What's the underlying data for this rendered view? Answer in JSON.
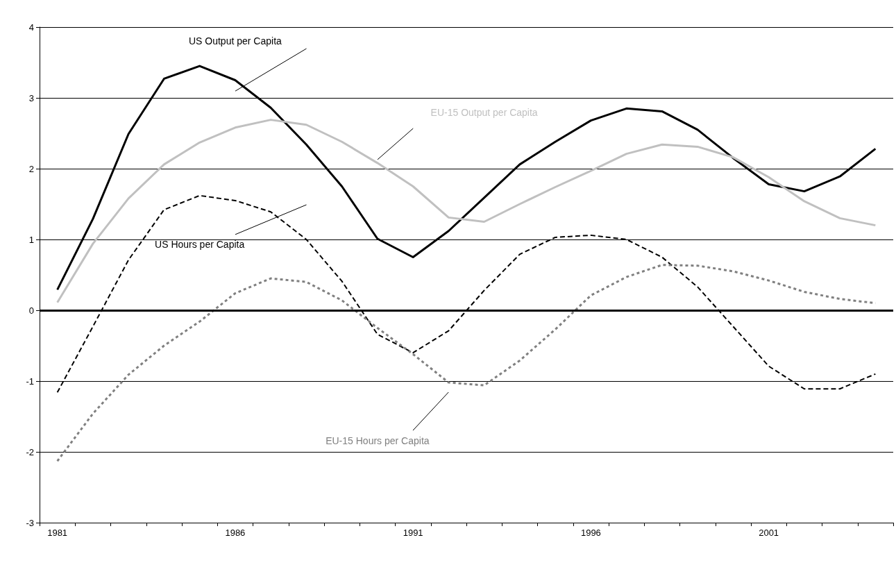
{
  "chart_data": {
    "type": "line",
    "categories": [
      "1981",
      null,
      null,
      null,
      null,
      "1986",
      null,
      null,
      null,
      null,
      "1991",
      null,
      null,
      null,
      null,
      "1996",
      null,
      null,
      null,
      null,
      "2001",
      null,
      null,
      null
    ],
    "series": [
      {
        "name": "US Output per Capita",
        "color": "#000000",
        "line_style": "solid",
        "values": [
          0.29,
          1.29,
          2.49,
          3.27,
          3.45,
          3.25,
          2.86,
          2.34,
          1.75,
          1.01,
          0.75,
          1.12,
          1.59,
          2.06,
          2.38,
          2.68,
          2.85,
          2.81,
          2.55,
          2.15,
          1.78,
          1.68,
          1.89,
          2.28
        ]
      },
      {
        "name": "EU-15 Output per Capita",
        "color": "#c0c0c0",
        "line_style": "solid",
        "values": [
          0.11,
          0.94,
          1.58,
          2.06,
          2.37,
          2.58,
          2.69,
          2.62,
          2.38,
          2.08,
          1.75,
          1.31,
          1.25,
          1.5,
          1.74,
          1.97,
          2.21,
          2.34,
          2.31,
          2.16,
          1.88,
          1.54,
          1.3,
          1.2
        ]
      },
      {
        "name": "US Hours per Capita",
        "color": "#000000",
        "line_style": "dashed",
        "values": [
          -1.16,
          -0.23,
          0.71,
          1.42,
          1.62,
          1.55,
          1.39,
          1.0,
          0.41,
          -0.34,
          -0.6,
          -0.29,
          0.28,
          0.79,
          1.03,
          1.06,
          1.0,
          0.75,
          0.33,
          -0.23,
          -0.79,
          -1.11,
          -1.11,
          -0.9
        ]
      },
      {
        "name": "EU-15 Hours per Capita",
        "color": "#808080",
        "line_style": "dotted",
        "values": [
          -2.13,
          -1.46,
          -0.91,
          -0.5,
          -0.16,
          0.24,
          0.45,
          0.4,
          0.14,
          -0.25,
          -0.62,
          -1.02,
          -1.06,
          -0.71,
          -0.27,
          0.21,
          0.47,
          0.64,
          0.63,
          0.55,
          0.42,
          0.26,
          0.16,
          0.1
        ]
      }
    ],
    "ylim": [
      -3,
      4
    ],
    "yticks": [
      -3,
      -2,
      -1,
      0,
      1,
      2,
      3,
      4
    ],
    "grid": "y",
    "marker": "none",
    "legend": false,
    "ref_lines": [
      {
        "axis": "y",
        "value": 0,
        "color": "#000000"
      }
    ]
  }
}
